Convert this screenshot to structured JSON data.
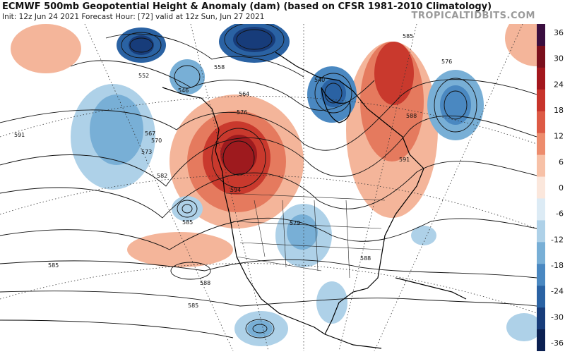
{
  "header": {
    "title": "ECMWF 500mb Geopotential Height & Anomaly (dam) (based on CFSR 1981-2010 Climatology)",
    "subtitle": "Init: 12z Jun 24 2021    Forecast Hour: [72]    valid at 12z Sun, Jun 27 2021",
    "brand": "TROPICALTIDBITS.COM"
  },
  "colorbar": {
    "ticks": [
      "36",
      "30",
      "24",
      "18",
      "12",
      "6",
      "0",
      "-6",
      "-12",
      "-18",
      "-24",
      "-30",
      "-36"
    ],
    "colors": [
      "#3a0e3f",
      "#7a0f1c",
      "#a3171d",
      "#c7342b",
      "#dd5a45",
      "#ed8c6d",
      "#f7c1a7",
      "#fbe7dc",
      "#dcebf5",
      "#aed1e8",
      "#78afd6",
      "#4a88c1",
      "#2a62a3",
      "#173c7a",
      "#0b2051"
    ]
  },
  "contour_labels": [
    "552",
    "558",
    "564",
    "570",
    "576",
    "582",
    "588",
    "591",
    "594",
    "540",
    "546",
    "567",
    "573",
    "579",
    "585"
  ],
  "features": {
    "ridge_center": "594",
    "pacific_low": "585",
    "atlantic_low": "576"
  }
}
